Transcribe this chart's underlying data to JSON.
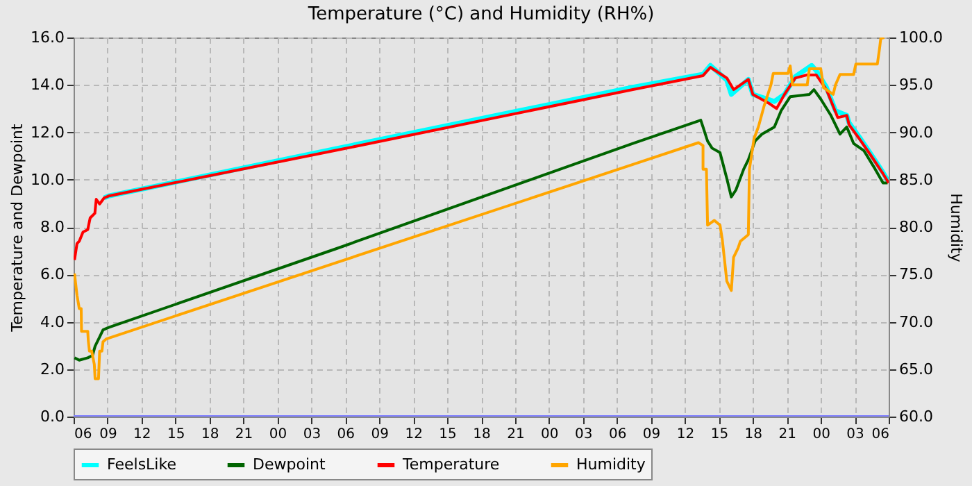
{
  "chart_data": {
    "type": "line",
    "title": "Temperature (°C) and Humidity (RH%)",
    "ylabel": "Temperature and Dewpoint",
    "y2label": "Humidity",
    "xlim": [
      6,
      78
    ],
    "xticks": [
      {
        "value": 6,
        "label": "06"
      },
      {
        "value": 9,
        "label": "09"
      },
      {
        "value": 12,
        "label": "12"
      },
      {
        "value": 15,
        "label": "15"
      },
      {
        "value": 18,
        "label": "18"
      },
      {
        "value": 21,
        "label": "21"
      },
      {
        "value": 24,
        "label": "00"
      },
      {
        "value": 27,
        "label": "03"
      },
      {
        "value": 30,
        "label": "06"
      },
      {
        "value": 33,
        "label": "09"
      },
      {
        "value": 36,
        "label": "12"
      },
      {
        "value": 39,
        "label": "15"
      },
      {
        "value": 42,
        "label": "18"
      },
      {
        "value": 45,
        "label": "21"
      },
      {
        "value": 48,
        "label": "00"
      },
      {
        "value": 51,
        "label": "03"
      },
      {
        "value": 54,
        "label": "06"
      },
      {
        "value": 57,
        "label": "09"
      },
      {
        "value": 60,
        "label": "12"
      },
      {
        "value": 63,
        "label": "15"
      },
      {
        "value": 66,
        "label": "18"
      },
      {
        "value": 69,
        "label": "21"
      },
      {
        "value": 72,
        "label": "00"
      },
      {
        "value": 75,
        "label": "03"
      },
      {
        "value": 78,
        "label": "06"
      }
    ],
    "ylim": [
      0,
      16
    ],
    "yticks": [
      {
        "value": 0,
        "label": "0.0"
      },
      {
        "value": 2,
        "label": "2.0"
      },
      {
        "value": 4,
        "label": "4.0"
      },
      {
        "value": 6,
        "label": "6.0"
      },
      {
        "value": 8,
        "label": "8.0"
      },
      {
        "value": 10,
        "label": "10.0"
      },
      {
        "value": 12,
        "label": "12.0"
      },
      {
        "value": 14,
        "label": "14.0"
      },
      {
        "value": 16,
        "label": "16.0"
      }
    ],
    "y2lim": [
      60,
      100
    ],
    "y2ticks": [
      {
        "value": 60,
        "label": "60.0"
      },
      {
        "value": 65,
        "label": "65.0"
      },
      {
        "value": 70,
        "label": "70.0"
      },
      {
        "value": 75,
        "label": "75.0"
      },
      {
        "value": 80,
        "label": "80.0"
      },
      {
        "value": 85,
        "label": "85.0"
      },
      {
        "value": 90,
        "label": "90.0"
      },
      {
        "value": 95,
        "label": "95.0"
      },
      {
        "value": 100,
        "label": "100.0"
      }
    ],
    "grid": true,
    "legend": "bottom",
    "line_style": "solid",
    "marker": "none",
    "series": [
      {
        "name": "FeelsLike",
        "color": "#00ffff",
        "x": [
          8.7,
          9.1,
          29.1,
          55.4,
          61.6,
          62.25,
          63.7,
          64.1,
          65.6,
          66.0,
          67.9,
          68.8,
          69.75,
          71.2,
          71.6,
          72.5,
          73.3,
          74.3,
          74.5,
          75.4,
          76.4,
          77.5,
          78
        ],
        "values": [
          9.23,
          9.31,
          11.3,
          13.9,
          14.45,
          14.82,
          14.2,
          13.6,
          14.23,
          13.6,
          13.3,
          13.6,
          14.35,
          14.82,
          14.6,
          13.9,
          12.91,
          12.71,
          12.4,
          11.8,
          11.1,
          10.3,
          9.9
        ]
      },
      {
        "name": "Dewpoint",
        "color": "#006400",
        "x": [
          6.08,
          6.5,
          7.25,
          7.67,
          7.9,
          8.3,
          8.6,
          9.1,
          29.1,
          55.4,
          61.4,
          61.6,
          62.0,
          62.4,
          63.1,
          63.7,
          64.1,
          64.5,
          65.2,
          65.6,
          66.2,
          66.8,
          67.9,
          68.5,
          69.3,
          71.0,
          71.4,
          72.0,
          72.9,
          73.7,
          74.3,
          74.9,
          75.8,
          76.8,
          77.5,
          77.9
        ],
        "values": [
          2.48,
          2.38,
          2.48,
          2.58,
          2.97,
          3.36,
          3.66,
          3.76,
          7.07,
          11.53,
          12.51,
          12.22,
          11.63,
          11.33,
          11.14,
          10.05,
          9.27,
          9.56,
          10.45,
          10.84,
          11.63,
          11.92,
          12.22,
          12.91,
          13.5,
          13.6,
          13.8,
          13.4,
          12.71,
          11.92,
          12.22,
          11.53,
          11.23,
          10.45,
          9.86,
          9.86
        ]
      },
      {
        "name": "Temperature",
        "color": "#ff0000",
        "x": [
          6.08,
          6.3,
          6.5,
          6.83,
          7.25,
          7.46,
          7.88,
          8.0,
          8.3,
          8.7,
          9.1,
          29.1,
          55.4,
          61.6,
          62.25,
          63.7,
          64.3,
          65.6,
          66.0,
          67.5,
          68.1,
          68.8,
          69.75,
          70.8,
          71.6,
          72.5,
          73.5,
          74.3,
          74.5,
          75.4,
          76.4,
          77.5,
          78
        ],
        "values": [
          6.61,
          7.3,
          7.4,
          7.79,
          7.89,
          8.38,
          8.58,
          9.17,
          8.97,
          9.23,
          9.31,
          11.23,
          13.8,
          14.39,
          14.74,
          14.29,
          13.8,
          14.23,
          13.6,
          13.2,
          13.0,
          13.6,
          14.29,
          14.42,
          14.42,
          13.8,
          12.62,
          12.71,
          12.32,
          11.73,
          11.04,
          10.25,
          9.86
        ]
      },
      {
        "name": "Humidity",
        "color": "#ffa500",
        "axis": "y2",
        "x": [
          6.08,
          6.3,
          6.5,
          6.67,
          6.7,
          7.25,
          7.3,
          7.4,
          7.6,
          7.83,
          7.9,
          8.2,
          8.3,
          8.5,
          8.6,
          8.9,
          29.1,
          55.4,
          61.2,
          61.6,
          61.6,
          61.9,
          62.0,
          62.6,
          63.1,
          63.3,
          63.7,
          64.1,
          64.3,
          64.7,
          64.9,
          65.6,
          65.7,
          66.1,
          66.5,
          67.0,
          67.6,
          67.8,
          69.1,
          69.3,
          69.5,
          70.8,
          71.0,
          72.0,
          72.25,
          73.1,
          73.3,
          73.7,
          74.9,
          75.1,
          77.0,
          77.2,
          77.3,
          77.6
        ],
        "values": [
          75.1,
          72.8,
          71.4,
          71.4,
          69.0,
          69.0,
          68.0,
          66.9,
          66.9,
          65.5,
          64.0,
          64.0,
          66.9,
          66.9,
          67.9,
          68.2,
          76.2,
          86.6,
          88.9,
          88.6,
          86.1,
          86.1,
          80.2,
          80.7,
          80.2,
          78.7,
          74.3,
          73.3,
          76.8,
          77.8,
          78.5,
          79.2,
          86.1,
          89.3,
          90.6,
          92.8,
          95.0,
          96.2,
          96.2,
          97.0,
          95.0,
          95.0,
          96.7,
          96.7,
          94.7,
          94.0,
          95.0,
          96.1,
          96.1,
          97.2,
          97.2,
          98.9,
          99.9,
          100
        ]
      },
      {
        "color": "#8080ff",
        "x": [
          6,
          78
        ],
        "values": [
          0,
          0
        ]
      }
    ]
  }
}
